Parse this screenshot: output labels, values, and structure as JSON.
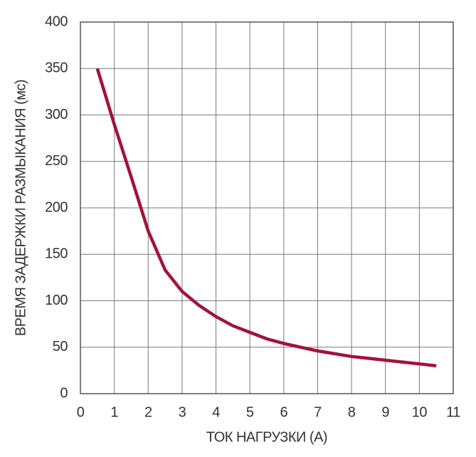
{
  "chart_data": {
    "type": "line",
    "x_label": "ТОК НАГРУЗКИ (А)",
    "y_label": "ВРЕМЯ ЗАДЕРЖКИ РАЗМЫКАНИЯ (мс)",
    "x": [
      0.5,
      1,
      1.5,
      2,
      2.5,
      3,
      3.5,
      4,
      4.5,
      5,
      5.5,
      6,
      6.5,
      7,
      7.5,
      8,
      8.5,
      9,
      9.5,
      10,
      10.5
    ],
    "values": [
      350,
      290,
      233,
      175,
      133,
      110,
      95,
      83,
      73,
      66,
      59,
      54,
      50,
      46,
      43,
      40,
      38,
      36,
      34,
      32,
      30
    ],
    "color": "#a3123a",
    "xlim": [
      0,
      11
    ],
    "xticks": [
      0,
      1,
      2,
      3,
      4,
      5,
      6,
      7,
      8,
      9,
      10,
      11
    ],
    "ylim": [
      0,
      400
    ],
    "yticks": [
      0,
      50,
      100,
      150,
      200,
      250,
      300,
      350,
      400
    ],
    "grid": true
  }
}
